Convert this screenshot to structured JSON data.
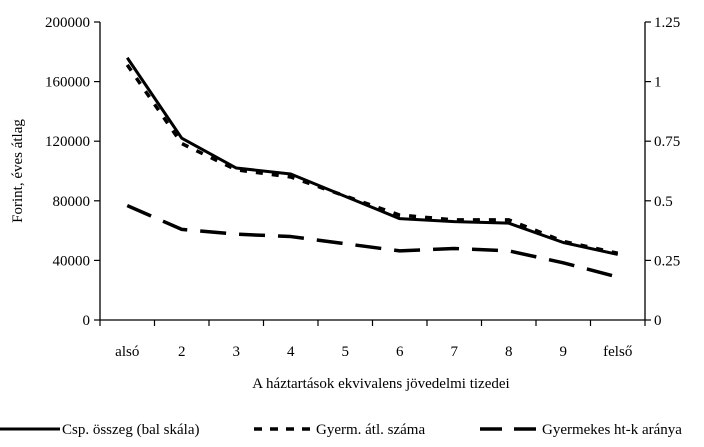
{
  "chart_data": {
    "type": "line",
    "categories": [
      "alsó",
      "2",
      "3",
      "4",
      "5",
      "6",
      "7",
      "8",
      "9",
      "felső"
    ],
    "title": "",
    "xlabel": "A háztartások ekvivalens jövedelmi tizedei",
    "ylabel": "Forint, éves átlag",
    "ylim": [
      0,
      200000
    ],
    "y2lim": [
      0,
      1.25
    ],
    "yticks": [
      "0",
      "40000",
      "80000",
      "120000",
      "160000",
      "200000"
    ],
    "y2ticks": [
      "0",
      "0.25",
      "0.5",
      "0.75",
      "1",
      "1.25"
    ],
    "legend_position": "bottom",
    "grid": false,
    "series": [
      {
        "name": "Csp. összeg (bal skála)",
        "axis": "left",
        "style": "solid",
        "values": [
          176000,
          122000,
          102000,
          98000,
          83000,
          68000,
          66000,
          65000,
          52000,
          44000
        ]
      },
      {
        "name": "Gyerm. átl. száma",
        "axis": "right",
        "style": "dotted",
        "values": [
          1.07,
          0.74,
          0.63,
          0.6,
          0.52,
          0.44,
          0.42,
          0.42,
          0.33,
          0.28
        ]
      },
      {
        "name": "Gyermekes ht-k aránya",
        "axis": "right",
        "style": "dashed",
        "values": [
          0.48,
          0.38,
          0.36,
          0.35,
          0.32,
          0.29,
          0.3,
          0.29,
          0.24,
          0.18
        ]
      }
    ],
    "colors": {
      "line": "#000000"
    }
  }
}
